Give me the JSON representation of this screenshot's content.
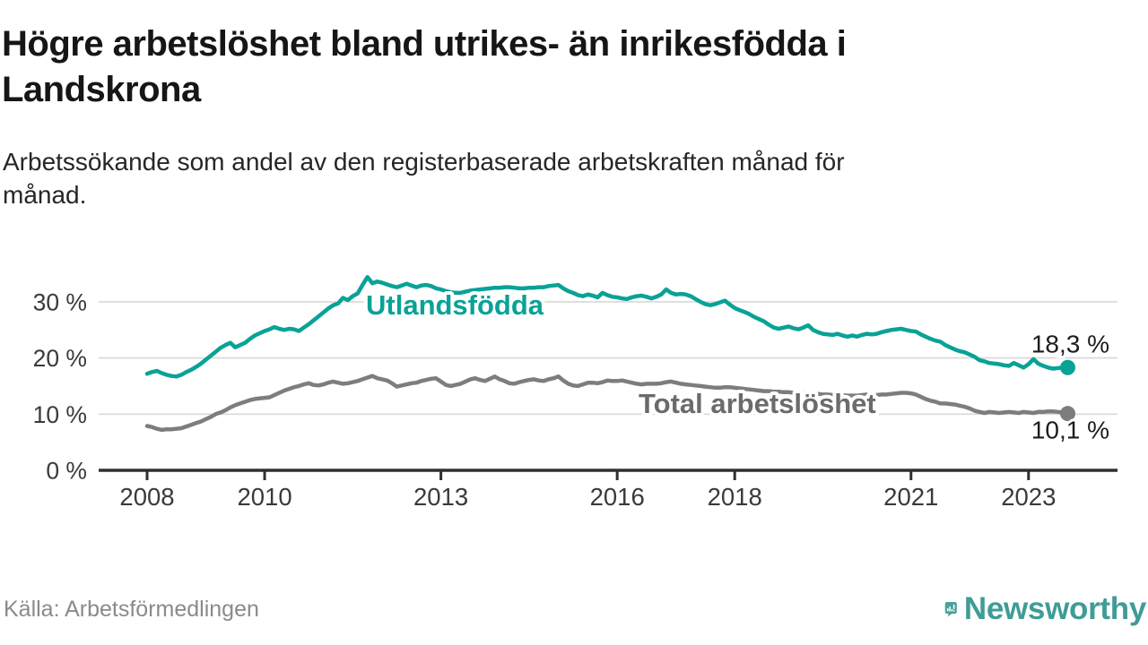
{
  "header": {
    "title_lines": [
      "Högre arbetslöshet bland utrikes- än inrikesfödda i",
      "Landskrona"
    ],
    "subtitle_lines": [
      "Arbetssökande som andel av den registerbaserade arbetskraften månad för",
      "månad."
    ]
  },
  "footer": {
    "source": "Källa: Arbetsförmedlingen",
    "brand": "Newsworthy"
  },
  "colors": {
    "accent_teal": "#09a296",
    "series_gray": "#7d7d7d",
    "series_gray_label": "#6b6b6b",
    "grid": "#d8d8d8",
    "axis": "#2f2f2f",
    "axis_text": "#3a3a3a",
    "value_label_text": "#1c1c1c",
    "brand_teal": "#4ba29c"
  },
  "chart_data": {
    "type": "line",
    "unit": "%",
    "frequency": "monthly",
    "x_start": "2008-01",
    "x_end": "2023-09",
    "ylim": [
      0,
      36
    ],
    "grid": "horizontal",
    "y_ticks": [
      {
        "label": "0 %",
        "value": 0
      },
      {
        "label": "10 %",
        "value": 10
      },
      {
        "label": "20 %",
        "value": 20
      },
      {
        "label": "30 %",
        "value": 30
      }
    ],
    "x_ticks": [
      {
        "label": "2008",
        "year": 2008
      },
      {
        "label": "2010",
        "year": 2010
      },
      {
        "label": "2013",
        "year": 2013
      },
      {
        "label": "2016",
        "year": 2016
      },
      {
        "label": "2018",
        "year": 2018
      },
      {
        "label": "2021",
        "year": 2021
      },
      {
        "label": "2023",
        "year": 2023
      }
    ],
    "series": [
      {
        "name": "Utlandsfödda",
        "color": "#09a296",
        "end_value": 18.3,
        "end_label": "18,3 %",
        "values": [
          17.2,
          17.5,
          17.7,
          17.3,
          17.0,
          16.8,
          16.7,
          17.0,
          17.5,
          17.9,
          18.4,
          19.0,
          19.7,
          20.4,
          21.1,
          21.8,
          22.3,
          22.7,
          21.9,
          22.3,
          22.7,
          23.4,
          24.0,
          24.4,
          24.8,
          25.1,
          25.5,
          25.2,
          25.0,
          25.2,
          25.1,
          24.8,
          25.4,
          26.0,
          26.7,
          27.4,
          28.1,
          28.8,
          29.4,
          29.7,
          30.7,
          30.3,
          31.0,
          31.5,
          33.0,
          34.4,
          33.3,
          33.6,
          33.4,
          33.1,
          32.8,
          32.6,
          32.9,
          33.2,
          32.9,
          32.6,
          32.9,
          33.0,
          32.8,
          32.4,
          32.2,
          31.9,
          31.7,
          31.6,
          31.6,
          31.8,
          32.0,
          32.1,
          32.2,
          32.3,
          32.4,
          32.5,
          32.5,
          32.6,
          32.6,
          32.5,
          32.4,
          32.4,
          32.5,
          32.5,
          32.6,
          32.6,
          32.8,
          32.9,
          33.0,
          32.4,
          31.9,
          31.6,
          31.2,
          31.0,
          31.3,
          31.1,
          30.8,
          31.6,
          31.2,
          30.9,
          30.8,
          30.6,
          30.5,
          30.8,
          31.0,
          31.1,
          30.9,
          30.6,
          30.9,
          31.3,
          32.2,
          31.6,
          31.3,
          31.4,
          31.3,
          31.0,
          30.5,
          30.0,
          29.6,
          29.4,
          29.6,
          29.9,
          30.2,
          29.5,
          28.9,
          28.5,
          28.2,
          27.8,
          27.3,
          26.9,
          26.5,
          25.9,
          25.4,
          25.2,
          25.4,
          25.6,
          25.3,
          25.1,
          25.4,
          25.8,
          25.0,
          24.6,
          24.3,
          24.2,
          24.1,
          24.3,
          24.0,
          23.8,
          24.0,
          23.8,
          24.1,
          24.3,
          24.2,
          24.3,
          24.6,
          24.8,
          25.0,
          25.1,
          25.2,
          25.0,
          24.8,
          24.7,
          24.2,
          23.8,
          23.4,
          23.1,
          22.9,
          22.3,
          21.9,
          21.5,
          21.2,
          21.0,
          20.6,
          20.2,
          19.6,
          19.4,
          19.1,
          19.0,
          18.9,
          18.7,
          18.6,
          19.1,
          18.7,
          18.3,
          18.9,
          19.8,
          19.0,
          18.6,
          18.3,
          18.1,
          18.2,
          18.3,
          18.3
        ]
      },
      {
        "name": "Total arbetslöshet",
        "color": "#7d7d7d",
        "end_value": 10.1,
        "end_label": "10,1 %",
        "values": [
          7.9,
          7.7,
          7.4,
          7.2,
          7.3,
          7.3,
          7.4,
          7.5,
          7.8,
          8.1,
          8.4,
          8.7,
          9.1,
          9.5,
          10.0,
          10.3,
          10.7,
          11.2,
          11.6,
          11.9,
          12.2,
          12.5,
          12.7,
          12.8,
          12.9,
          13.0,
          13.4,
          13.8,
          14.2,
          14.5,
          14.8,
          15.0,
          15.3,
          15.5,
          15.2,
          15.1,
          15.3,
          15.6,
          15.8,
          15.6,
          15.4,
          15.5,
          15.7,
          15.9,
          16.2,
          16.5,
          16.8,
          16.4,
          16.2,
          16.0,
          15.5,
          14.9,
          15.1,
          15.3,
          15.5,
          15.6,
          15.9,
          16.1,
          16.3,
          16.4,
          15.8,
          15.2,
          15.0,
          15.2,
          15.4,
          15.8,
          16.2,
          16.4,
          16.1,
          15.9,
          16.3,
          16.7,
          16.2,
          15.9,
          15.5,
          15.4,
          15.7,
          15.9,
          16.1,
          16.2,
          16.0,
          15.9,
          16.2,
          16.4,
          16.7,
          16.0,
          15.4,
          15.1,
          15.0,
          15.3,
          15.6,
          15.6,
          15.5,
          15.7,
          16.0,
          15.9,
          15.9,
          16.0,
          15.8,
          15.6,
          15.4,
          15.3,
          15.4,
          15.4,
          15.4,
          15.5,
          15.7,
          15.8,
          15.6,
          15.4,
          15.3,
          15.2,
          15.1,
          15.0,
          14.9,
          14.8,
          14.7,
          14.7,
          14.8,
          14.8,
          14.7,
          14.6,
          14.5,
          14.4,
          14.3,
          14.2,
          14.1,
          14.1,
          14.0,
          14.0,
          13.9,
          13.9,
          13.8,
          13.8,
          13.7,
          13.7,
          13.6,
          13.6,
          13.5,
          13.5,
          13.4,
          13.4,
          13.4,
          13.3,
          13.3,
          13.3,
          13.4,
          13.5,
          13.5,
          13.4,
          13.5,
          13.5,
          13.6,
          13.7,
          13.8,
          13.8,
          13.7,
          13.5,
          13.1,
          12.7,
          12.4,
          12.2,
          11.9,
          11.9,
          11.8,
          11.7,
          11.5,
          11.3,
          11.0,
          10.6,
          10.4,
          10.2,
          10.4,
          10.3,
          10.2,
          10.3,
          10.4,
          10.3,
          10.2,
          10.4,
          10.3,
          10.2,
          10.4,
          10.4,
          10.5,
          10.5,
          10.4,
          10.3,
          10.1
        ]
      }
    ]
  }
}
